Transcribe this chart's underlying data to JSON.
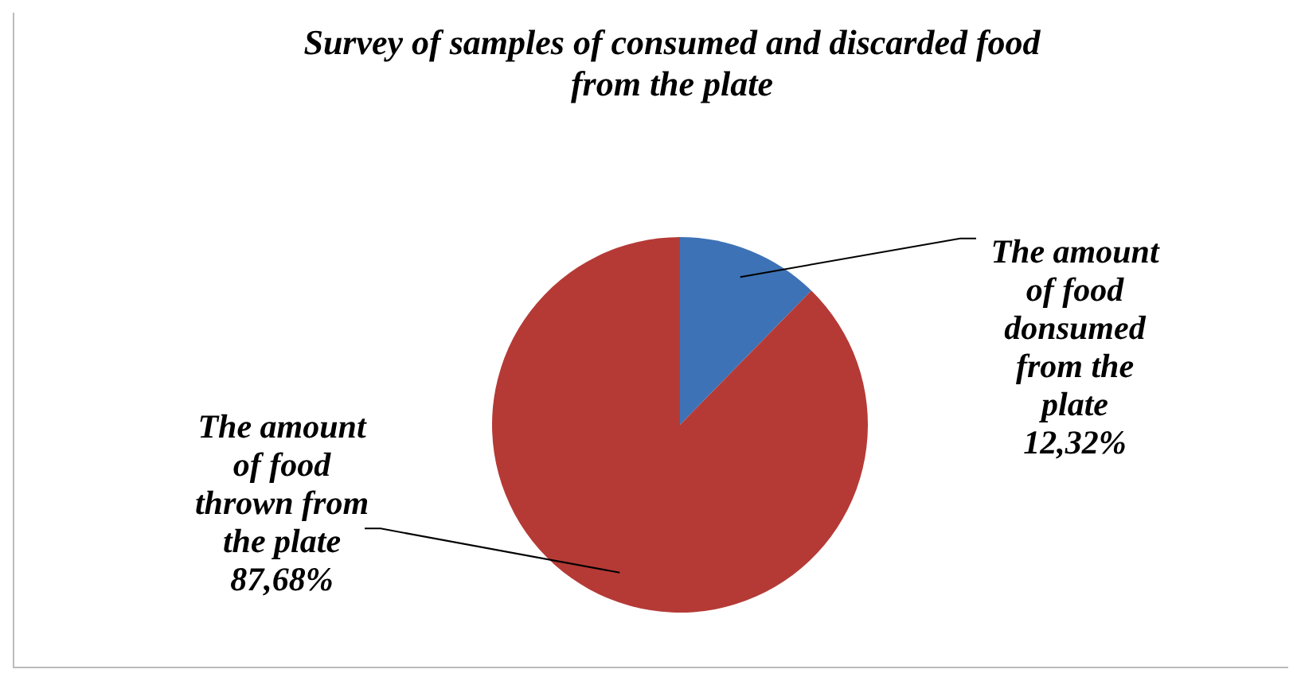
{
  "chart_data": {
    "type": "pie",
    "title": "Survey of samples of consumed and discarded food from the plate",
    "categories": [
      "The amount of food donsumed from the plate",
      "The amount of food thrown from the plate"
    ],
    "values": [
      12.32,
      87.68
    ],
    "value_labels": [
      "12,32%",
      "87,68%"
    ],
    "colors": [
      "#3d72b6",
      "#b53a36"
    ]
  }
}
